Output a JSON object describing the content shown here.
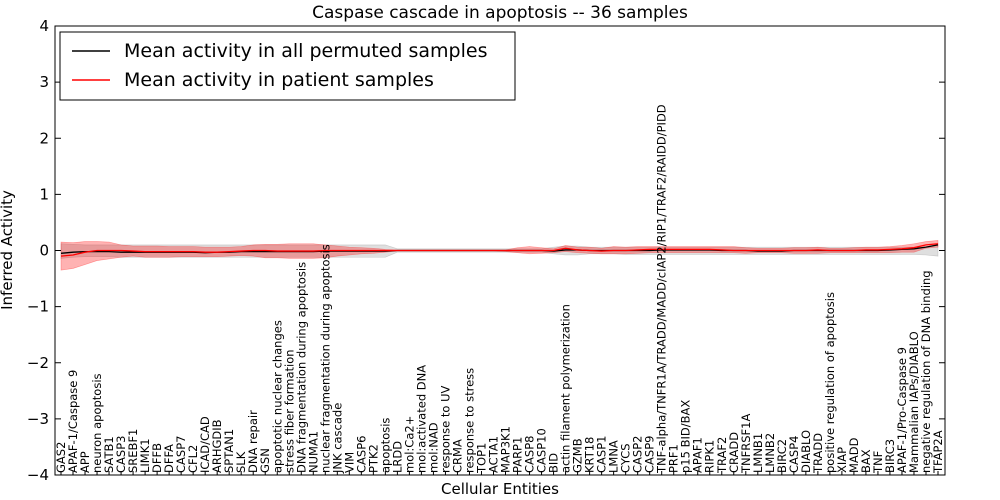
{
  "chart_data": {
    "type": "line",
    "title": "Caspase cascade in apoptosis -- 36 samples",
    "xlabel": "Cellular Entities",
    "ylabel": "Inferred Activity",
    "ylim": [
      -4,
      4
    ],
    "yticks": [
      4,
      3,
      2,
      1,
      0,
      -1,
      -2,
      -3,
      -4
    ],
    "ytick_labels": [
      "4",
      "3",
      "2",
      "1",
      "0",
      "−1",
      "−2",
      "−3",
      "−4"
    ],
    "legend_position": "top-left",
    "legend": [
      {
        "label": "Mean activity in all permuted samples",
        "color": "#000000"
      },
      {
        "label": "Mean activity in patient samples",
        "color": "#ff0000"
      }
    ],
    "categories": [
      "GAS2",
      "APAF-1/Caspase 9",
      "APP",
      "neuron apoptosis",
      "SATB1",
      "CASP3",
      "SREBF1",
      "LIMK1",
      "DFFB",
      "DFFA",
      "CASP7",
      "CFL2",
      "ICAD/CAD",
      "ARHGDIB",
      "SPTAN1",
      "SLK",
      "DNA repair",
      "GSN",
      "apoptotic nuclear changes",
      "stress fiber formation",
      "DNA fragmentation during apoptosis",
      "NUMA1",
      "nuclear fragmentation during apoptosis",
      "JNK cascade",
      "VIM",
      "CASP6",
      "PTK2",
      "apoptosis",
      "LRDD",
      "mol:Ca2+",
      "mol:activated DNA",
      "mol:NAD",
      "response to UV",
      "CRMA",
      "response to stress",
      "TOP1",
      "ACTA1",
      "MAP3K1",
      "PARP1",
      "CASP8",
      "CASP10",
      "BID",
      "actin filament polymerization",
      "GZMB",
      "KRT18",
      "CASP1",
      "LMNA",
      "CYCS",
      "CASP2",
      "CASP9",
      "TNF-alpha/TNFR1A/TRADD/MADD/cIAP2/RIP1/TRAF2/RAIDD/PIDD",
      "PRF1",
      "p15 BID/BAX",
      "APAF1",
      "RIPK1",
      "TRAF2",
      "CRADD",
      "TNFRSF1A",
      "LMNB1",
      "LMNB2",
      "BIRC2",
      "CASP4",
      "DIABLO",
      "TRADD",
      "positive regulation of apoptosis",
      "XIAP",
      "MADD",
      "BAX",
      "TNF",
      "BIRC3",
      "APAF-1/Pro-Caspase 9",
      "Mammalian IAPs/DIABLO",
      "negative regulation of DNA binding",
      "TFAP2A"
    ],
    "series": [
      {
        "name": "Mean activity in all permuted samples",
        "color": "#000000",
        "values": [
          -0.05,
          -0.03,
          -0.02,
          -0.02,
          -0.02,
          -0.03,
          -0.03,
          -0.03,
          -0.03,
          -0.03,
          -0.03,
          -0.03,
          -0.04,
          -0.03,
          -0.03,
          -0.02,
          -0.02,
          -0.02,
          -0.02,
          -0.02,
          -0.02,
          -0.02,
          -0.01,
          -0.01,
          -0.01,
          -0.01,
          -0.01,
          -0.01,
          0,
          0,
          0,
          0,
          0,
          0,
          0,
          0,
          0,
          0,
          0,
          0,
          0,
          -0.01,
          0.01,
          0.01,
          0,
          0,
          0,
          0,
          0,
          0,
          0.01,
          0.01,
          0.01,
          0.01,
          0.01,
          0,
          0,
          0,
          -0.01,
          -0.01,
          -0.01,
          0,
          0,
          0,
          0,
          0,
          0,
          0,
          0,
          0.01,
          0.02,
          0.03,
          0.06,
          0.1
        ],
        "band_upper": [
          0.12,
          0.11,
          0.1,
          0.1,
          0.1,
          0.1,
          0.1,
          0.1,
          0.1,
          0.1,
          0.1,
          0.1,
          0.1,
          0.1,
          0.1,
          0.1,
          0.1,
          0.1,
          0.1,
          0.1,
          0.1,
          0.1,
          0.1,
          0.1,
          0.1,
          0.1,
          0.1,
          0.1,
          0.03,
          0.03,
          0.03,
          0.03,
          0.03,
          0.03,
          0.03,
          0.03,
          0.03,
          0.03,
          0.03,
          0.03,
          0.03,
          0.06,
          0.08,
          0.08,
          0.06,
          0.06,
          0.06,
          0.06,
          0.06,
          0.06,
          0.06,
          0.06,
          0.06,
          0.06,
          0.06,
          0.06,
          0.06,
          0.06,
          0.06,
          0.06,
          0.06,
          0.06,
          0.06,
          0.06,
          0.06,
          0.06,
          0.06,
          0.06,
          0.06,
          0.06,
          0.06,
          0.06,
          0.06,
          0.12
        ],
        "band_lower": [
          -0.14,
          -0.12,
          -0.11,
          -0.11,
          -0.11,
          -0.12,
          -0.12,
          -0.12,
          -0.12,
          -0.12,
          -0.12,
          -0.12,
          -0.12,
          -0.12,
          -0.12,
          -0.12,
          -0.12,
          -0.12,
          -0.12,
          -0.12,
          -0.12,
          -0.12,
          -0.12,
          -0.12,
          -0.12,
          -0.12,
          -0.12,
          -0.12,
          -0.03,
          -0.03,
          -0.03,
          -0.03,
          -0.03,
          -0.03,
          -0.03,
          -0.03,
          -0.03,
          -0.03,
          -0.03,
          -0.03,
          -0.03,
          -0.06,
          -0.08,
          -0.08,
          -0.06,
          -0.06,
          -0.06,
          -0.07,
          -0.07,
          -0.07,
          -0.07,
          -0.07,
          -0.07,
          -0.07,
          -0.07,
          -0.07,
          -0.07,
          -0.07,
          -0.07,
          -0.07,
          -0.07,
          -0.07,
          -0.07,
          -0.07,
          -0.07,
          -0.07,
          -0.07,
          -0.07,
          -0.07,
          -0.07,
          -0.07,
          -0.07,
          -0.08,
          -0.1
        ]
      },
      {
        "name": "Mean activity in patient samples",
        "color": "#ff0000",
        "values": [
          -0.1,
          -0.08,
          -0.03,
          0,
          0,
          0,
          -0.01,
          -0.02,
          -0.02,
          -0.02,
          -0.02,
          -0.02,
          -0.03,
          -0.03,
          -0.02,
          -0.01,
          0,
          0,
          -0.01,
          -0.01,
          -0.01,
          -0.01,
          0,
          0,
          0,
          0,
          0,
          0,
          0,
          0,
          0,
          0,
          0,
          0,
          0,
          0,
          0,
          0,
          0,
          0,
          0,
          0,
          0.04,
          0.01,
          0,
          -0.01,
          0,
          0,
          0.01,
          0.02,
          0.02,
          0.02,
          0.02,
          0.02,
          0.02,
          0.01,
          0,
          0,
          0,
          0,
          0,
          0,
          0,
          0.01,
          0,
          0,
          0,
          0.01,
          0.01,
          0.02,
          0.03,
          0.05,
          0.1,
          0.12
        ],
        "band_upper": [
          0.15,
          0.14,
          0.16,
          0.16,
          0.15,
          0.1,
          0.08,
          0.08,
          0.08,
          0.07,
          0.07,
          0.07,
          0.06,
          0.06,
          0.06,
          0.07,
          0.1,
          0.11,
          0.11,
          0.12,
          0.12,
          0.12,
          0.1,
          0.08,
          0.06,
          0.05,
          0.04,
          0.02,
          0.01,
          0.01,
          0.01,
          0.01,
          0.01,
          0.01,
          0.01,
          0.01,
          0.01,
          0.01,
          0.05,
          0.07,
          0.05,
          0.03,
          0.09,
          0.06,
          0.06,
          0.04,
          0.07,
          0.06,
          0.07,
          0.07,
          0.07,
          0.07,
          0.07,
          0.07,
          0.07,
          0.07,
          0.07,
          0.05,
          0.04,
          0.04,
          0.04,
          0.05,
          0.05,
          0.06,
          0.04,
          0.04,
          0.05,
          0.06,
          0.06,
          0.07,
          0.09,
          0.12,
          0.16,
          0.18
        ],
        "band_lower": [
          -0.35,
          -0.32,
          -0.25,
          -0.18,
          -0.15,
          -0.12,
          -0.1,
          -0.12,
          -0.12,
          -0.12,
          -0.11,
          -0.11,
          -0.11,
          -0.11,
          -0.1,
          -0.09,
          -0.1,
          -0.13,
          -0.13,
          -0.14,
          -0.14,
          -0.14,
          -0.13,
          -0.1,
          -0.08,
          -0.06,
          -0.05,
          -0.03,
          -0.01,
          -0.01,
          -0.01,
          -0.01,
          -0.01,
          -0.01,
          -0.01,
          -0.01,
          -0.01,
          -0.02,
          -0.04,
          -0.06,
          -0.05,
          -0.04,
          -0.02,
          -0.04,
          -0.05,
          -0.06,
          -0.06,
          -0.06,
          -0.05,
          -0.04,
          -0.04,
          -0.04,
          -0.04,
          -0.04,
          -0.04,
          -0.04,
          -0.04,
          -0.05,
          -0.04,
          -0.04,
          -0.04,
          -0.05,
          -0.05,
          -0.05,
          -0.04,
          -0.04,
          -0.04,
          -0.04,
          -0.04,
          -0.04,
          -0.03,
          -0.03,
          0.04,
          0.06
        ]
      }
    ]
  }
}
